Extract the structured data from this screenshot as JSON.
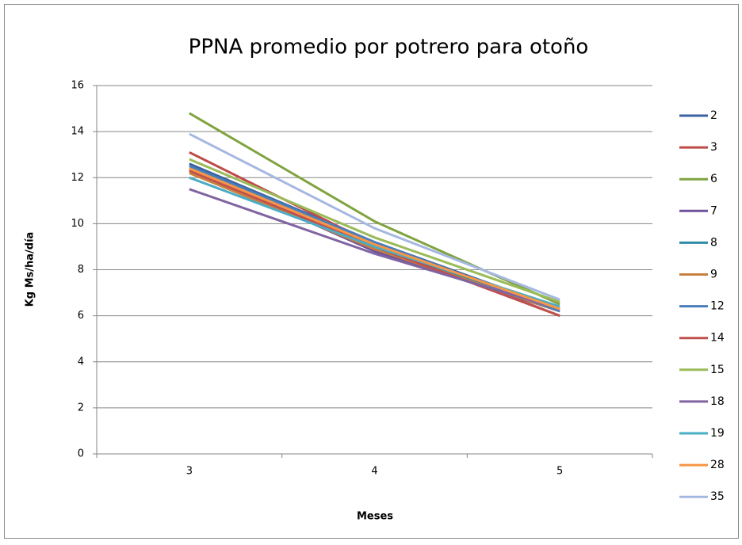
{
  "chart_data": {
    "type": "line",
    "title": "PPNA promedio por potrero para otoño",
    "x_label": "Meses",
    "y_label": "Kg Ms/ha/día",
    "categories": [
      3,
      4,
      5
    ],
    "ylim": [
      0,
      16
    ],
    "yticks": [
      0,
      2,
      4,
      6,
      8,
      10,
      12,
      14,
      16
    ],
    "grid": true,
    "legend": "right",
    "series": [
      {
        "name": "2",
        "color": "#3a62a0",
        "values": [
          12.6,
          9.2,
          6.3
        ]
      },
      {
        "name": "3",
        "color": "#be4b48",
        "values": [
          13.1,
          9.1,
          6.0
        ]
      },
      {
        "name": "6",
        "color": "#7fa33f",
        "values": [
          14.8,
          10.1,
          6.5
        ]
      },
      {
        "name": "7",
        "color": "#70539a",
        "values": [
          12.4,
          8.8,
          6.2
        ]
      },
      {
        "name": "8",
        "color": "#2f8ca8",
        "values": [
          12.3,
          9.0,
          6.3
        ]
      },
      {
        "name": "9",
        "color": "#c9803e",
        "values": [
          12.2,
          8.9,
          6.2
        ]
      },
      {
        "name": "12",
        "color": "#4a7ebb",
        "values": [
          12.5,
          9.2,
          6.2
        ]
      },
      {
        "name": "14",
        "color": "#c0504d",
        "values": [
          12.3,
          9.0,
          6.0
        ]
      },
      {
        "name": "15",
        "color": "#9bbb59",
        "values": [
          12.8,
          9.4,
          6.6
        ]
      },
      {
        "name": "18",
        "color": "#8064a2",
        "values": [
          11.5,
          8.7,
          6.3
        ]
      },
      {
        "name": "19",
        "color": "#4bacc6",
        "values": [
          12.0,
          9.0,
          6.4
        ]
      },
      {
        "name": "28",
        "color": "#f79646",
        "values": [
          12.4,
          9.1,
          6.3
        ]
      },
      {
        "name": "35",
        "color": "#a5b8e0",
        "values": [
          13.9,
          9.8,
          6.7
        ]
      }
    ]
  }
}
